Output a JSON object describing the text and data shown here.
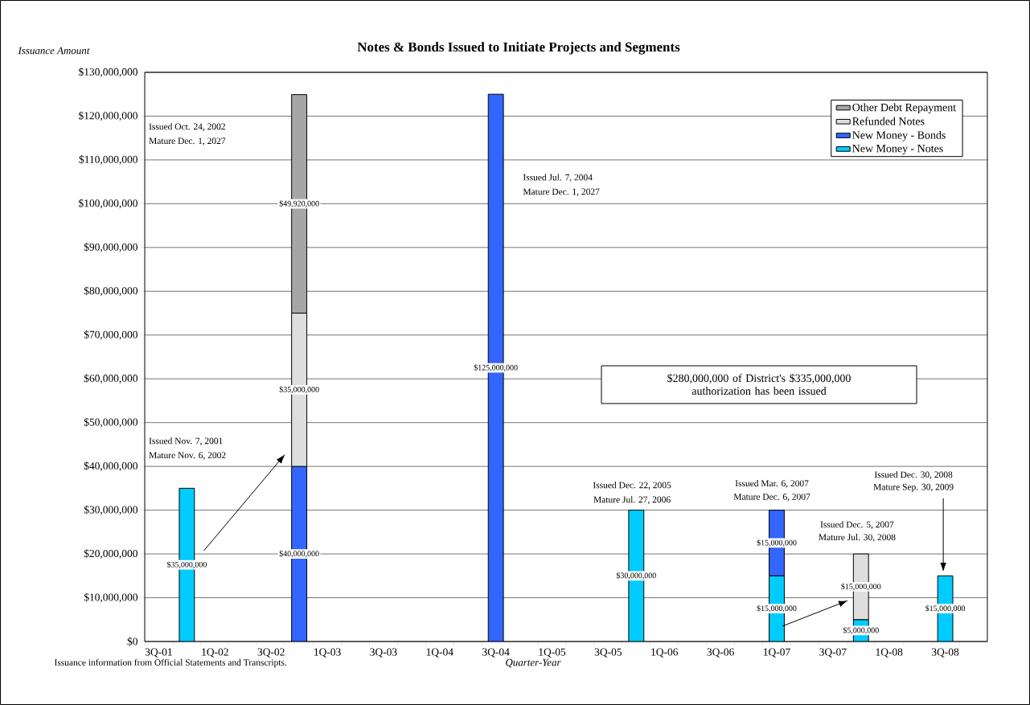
{
  "chart_data": {
    "type": "bar",
    "stacked": true,
    "title": "Notes & Bonds Issued to Initiate Projects and Segments",
    "xlabel": "Quarter-Year",
    "ylabel": "Issuance Amount",
    "categories": [
      "3Q-01",
      null,
      "1Q-02",
      null,
      "3Q-02",
      null,
      "1Q-03",
      null,
      "3Q-03",
      null,
      "1Q-04",
      null,
      "3Q-04",
      null,
      "1Q-05",
      null,
      "3Q-05",
      null,
      "1Q-06",
      null,
      "3Q-06",
      null,
      "1Q-07",
      null,
      "3Q-07",
      null,
      "1Q-08",
      null,
      "3Q-08",
      null
    ],
    "series": [
      {
        "name": "New Money - Notes",
        "color": "#00ccff",
        "values": [
          null,
          35000000,
          null,
          null,
          null,
          null,
          null,
          null,
          null,
          null,
          null,
          null,
          null,
          null,
          null,
          null,
          null,
          30000000,
          null,
          null,
          null,
          null,
          15000000,
          null,
          null,
          5000000,
          null,
          null,
          15000000,
          null
        ],
        "value_labels": [
          null,
          "$35,000,000",
          null,
          null,
          null,
          null,
          null,
          null,
          null,
          null,
          null,
          null,
          null,
          null,
          null,
          null,
          null,
          "$30,000,000",
          null,
          null,
          null,
          null,
          "$15,000,000",
          null,
          null,
          "$5,000,000",
          null,
          null,
          "$15,000,000",
          null
        ]
      },
      {
        "name": "New Money - Bonds",
        "color": "#3366ff",
        "values": [
          null,
          null,
          null,
          null,
          null,
          40000000,
          null,
          null,
          null,
          null,
          null,
          null,
          125000000,
          null,
          null,
          null,
          null,
          null,
          null,
          null,
          null,
          null,
          15000000,
          null,
          null,
          null,
          null,
          null,
          null,
          null
        ],
        "value_labels": [
          null,
          null,
          null,
          null,
          null,
          "$40,000,000",
          null,
          null,
          null,
          null,
          null,
          null,
          "$125,000,000",
          null,
          null,
          null,
          null,
          null,
          null,
          null,
          null,
          null,
          "$15,000,000",
          null,
          null,
          null,
          null,
          null,
          null,
          null
        ]
      },
      {
        "name": "Refunded Notes",
        "color": "#dedede",
        "values": [
          null,
          null,
          null,
          null,
          null,
          35000000,
          null,
          null,
          null,
          null,
          null,
          null,
          null,
          null,
          null,
          null,
          null,
          null,
          null,
          null,
          null,
          null,
          null,
          null,
          null,
          15000000,
          null,
          null,
          null,
          null
        ],
        "value_labels": [
          null,
          null,
          null,
          null,
          null,
          "$35,000,000",
          null,
          null,
          null,
          null,
          null,
          null,
          null,
          null,
          null,
          null,
          null,
          null,
          null,
          null,
          null,
          null,
          null,
          null,
          null,
          "$15,000,000",
          null,
          null,
          null,
          null
        ]
      },
      {
        "name": "Other Debt Repayment",
        "color": "#a6a6a6",
        "values": [
          null,
          null,
          null,
          null,
          null,
          49920000,
          null,
          null,
          null,
          null,
          null,
          null,
          null,
          null,
          null,
          null,
          null,
          null,
          null,
          null,
          null,
          null,
          null,
          null,
          null,
          null,
          null,
          null,
          null,
          null
        ],
        "value_labels": [
          null,
          null,
          null,
          null,
          null,
          "$49,920,000",
          null,
          null,
          null,
          null,
          null,
          null,
          null,
          null,
          null,
          null,
          null,
          null,
          null,
          null,
          null,
          null,
          null,
          null,
          null,
          null,
          null,
          null,
          null,
          null
        ]
      }
    ],
    "ylim": [
      0,
      130000000
    ],
    "yticks": [
      {
        "value": 0,
        "label": "$0"
      },
      {
        "value": 10000000,
        "label": "$10,000,000"
      },
      {
        "value": 20000000,
        "label": "$20,000,000"
      },
      {
        "value": 30000000,
        "label": "$30,000,000"
      },
      {
        "value": 40000000,
        "label": "$40,000,000"
      },
      {
        "value": 50000000,
        "label": "$50,000,000"
      },
      {
        "value": 60000000,
        "label": "$60,000,000"
      },
      {
        "value": 70000000,
        "label": "$70,000,000"
      },
      {
        "value": 80000000,
        "label": "$80,000,000"
      },
      {
        "value": 90000000,
        "label": "$90,000,000"
      },
      {
        "value": 100000000,
        "label": "$100,000,000"
      },
      {
        "value": 110000000,
        "label": "$110,000,000"
      },
      {
        "value": 120000000,
        "label": "$120,000,000"
      },
      {
        "value": 130000000,
        "label": "$130,000,000"
      }
    ],
    "grid": "y",
    "legend": "top right",
    "annotations": [
      "Issued Nov. 7, 2001",
      "Mature Nov. 6, 2002",
      "Issued Oct. 24, 2002",
      "Mature Dec. 1, 2027",
      "Issued Jul. 7, 2004",
      "Mature Dec. 1, 2027",
      "Issued Dec. 22, 2005",
      "Mature Jul. 27, 2006",
      "Issued Mar. 6, 2007",
      "Mature Dec. 6, 2007",
      "Issued Dec. 5, 2007",
      "Mature Jul. 30, 2008",
      "Issued Dec. 30, 2008",
      "Mature Sep. 30, 2009",
      "$280,000,000 of District's $335,000,000 authorization has been issued",
      "Issuance information from Official Statements and Transcripts."
    ]
  }
}
